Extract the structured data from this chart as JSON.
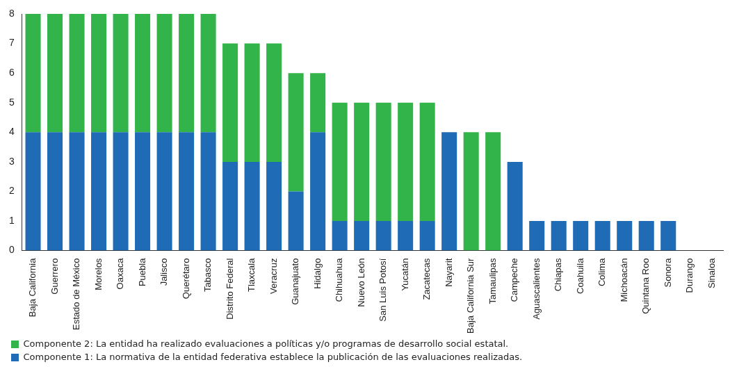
{
  "chart_data": {
    "type": "bar",
    "stacked": true,
    "legend": "bottom left",
    "categories": [
      "Baja California",
      "Guerrero",
      "Estado de México",
      "Morelos",
      "Oaxaca",
      "Puebla",
      "Jalisco",
      "Querétaro",
      "Tabasco",
      "Distrito Federal",
      "Tlaxcala",
      "Veracruz",
      "Guanajuato",
      "Hidalgo",
      "Chihuahua",
      "Nuevo León",
      "San Luis Potosí",
      "Yucatán",
      "Zacatecas",
      "Nayarit",
      "Baja California Sur",
      "Tamaulipas",
      "Campeche",
      "Aguascalientes",
      "Chiapas",
      "Coahuila",
      "Colima",
      "Michoacán",
      "Quintana Roo",
      "Sonora",
      "Durango",
      "Sinaloa"
    ],
    "series": [
      {
        "name": "Componente 1: La normativa de la entidad federativa establece la publicación de las evaluaciones realizadas.",
        "color": "#1f6bb5",
        "values": [
          4,
          4,
          4,
          4,
          4,
          4,
          4,
          4,
          4,
          3,
          3,
          3,
          2,
          4,
          1,
          1,
          1,
          1,
          1,
          4,
          0,
          0,
          3,
          1,
          1,
          1,
          1,
          1,
          1,
          1,
          0,
          0
        ]
      },
      {
        "name": "Componente 2: La entidad ha realizado evaluaciones a políticas y/o programas de desarrollo social estatal.",
        "color": "#33b44a",
        "values": [
          4,
          4,
          4,
          4,
          4,
          4,
          4,
          4,
          4,
          4,
          4,
          4,
          4,
          2,
          4,
          4,
          4,
          4,
          4,
          0,
          4,
          4,
          0,
          0,
          0,
          0,
          0,
          0,
          0,
          0,
          0,
          0
        ]
      }
    ],
    "ylim": [
      0,
      8
    ],
    "yticks": [
      0,
      1,
      2,
      3,
      4,
      5,
      6,
      7,
      8
    ]
  }
}
